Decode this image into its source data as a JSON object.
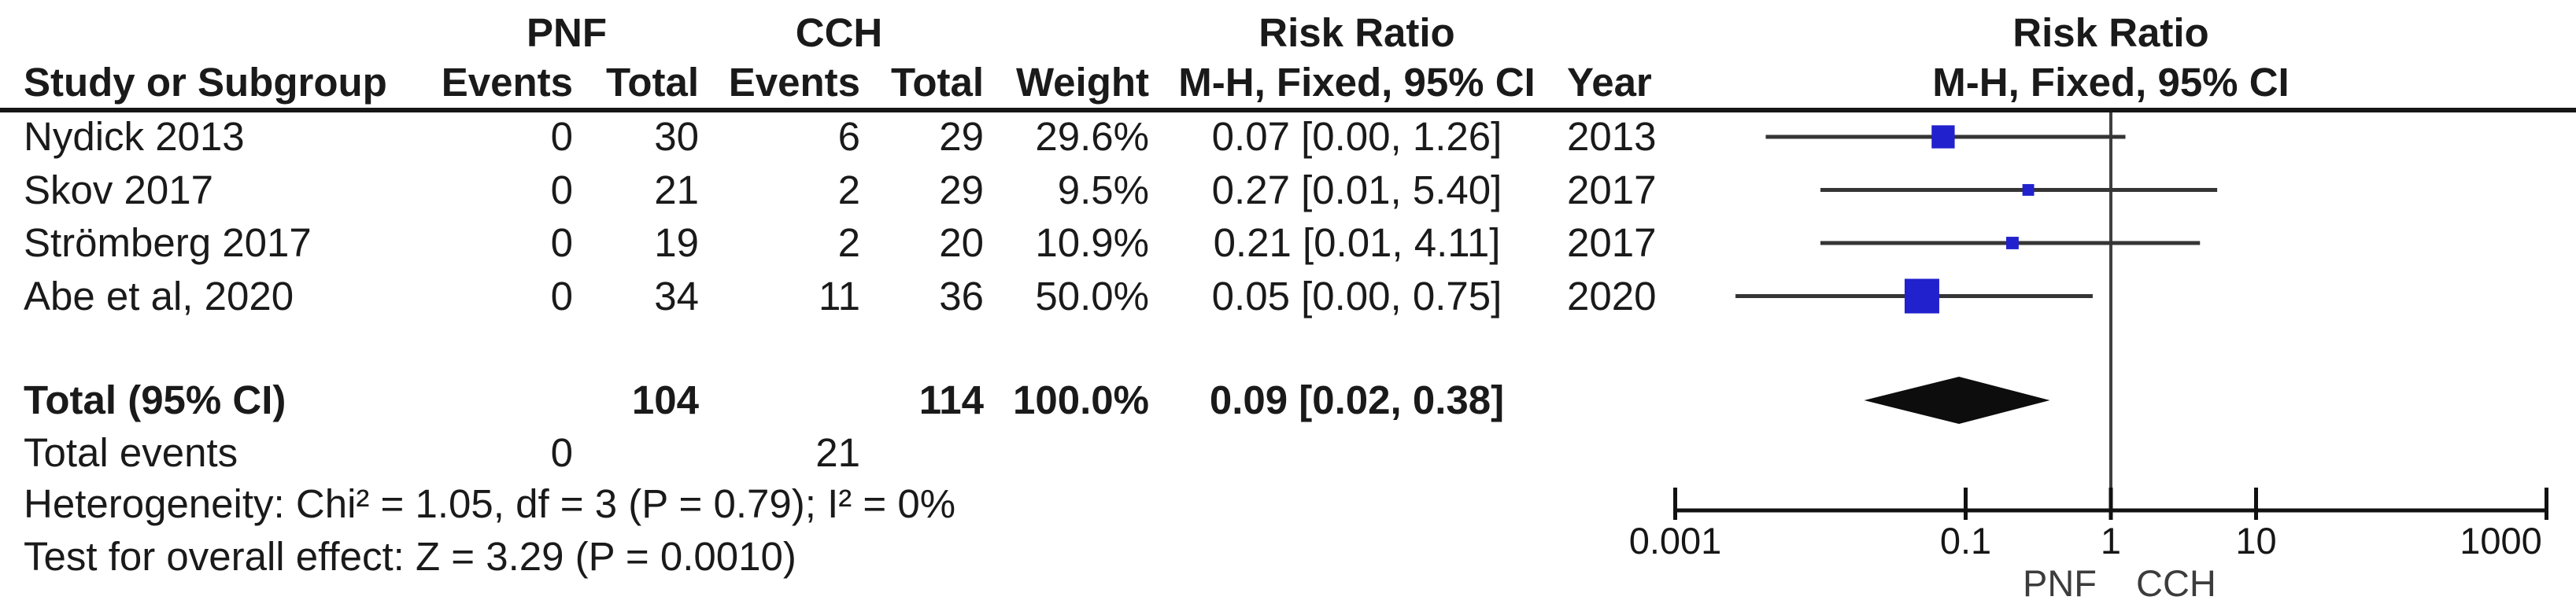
{
  "table": {
    "group_headers": {
      "pnf": "PNF",
      "cch": "CCH",
      "rr_text_col": "Risk Ratio",
      "rr_plot_col": "Risk Ratio"
    },
    "col_headers": {
      "study": "Study or Subgroup",
      "pnf_events": "Events",
      "pnf_total": "Total",
      "cch_events": "Events",
      "cch_total": "Total",
      "weight": "Weight",
      "rr_text_col": "M-H, Fixed, 95% CI",
      "year": "Year",
      "rr_plot_col": "M-H, Fixed, 95% CI"
    },
    "rows": [
      {
        "name": "Nydick 2013",
        "pnf_events": "0",
        "pnf_total": "30",
        "cch_events": "6",
        "cch_total": "29",
        "weight": "29.6%",
        "rr_ci": "0.07 [0.00, 1.26]",
        "year": "2013"
      },
      {
        "name": "Skov 2017",
        "pnf_events": "0",
        "pnf_total": "21",
        "cch_events": "2",
        "cch_total": "29",
        "weight": "9.5%",
        "rr_ci": "0.27 [0.01, 5.40]",
        "year": "2017"
      },
      {
        "name": "Strömberg 2017",
        "pnf_events": "0",
        "pnf_total": "19",
        "cch_events": "2",
        "cch_total": "20",
        "weight": "10.9%",
        "rr_ci": "0.21 [0.01, 4.11]",
        "year": "2017"
      },
      {
        "name": "Abe et al, 2020",
        "pnf_events": "0",
        "pnf_total": "34",
        "cch_events": "11",
        "cch_total": "36",
        "weight": "50.0%",
        "rr_ci": "0.05 [0.00, 0.75]",
        "year": "2020"
      }
    ],
    "total_row": {
      "label": "Total (95% CI)",
      "pnf_total": "104",
      "cch_total": "114",
      "weight": "100.0%",
      "rr_ci": "0.09 [0.02, 0.38]"
    },
    "total_events_row": {
      "label": "Total events",
      "pnf_events": "0",
      "cch_events": "21"
    },
    "heterogeneity": "Heterogeneity: Chi² = 1.05, df = 3 (P = 0.79); I² = 0%",
    "overall_effect": "Test for overall effect: Z = 3.29 (P = 0.0010)"
  },
  "chart_data": {
    "type": "forest",
    "x_scale": "log10",
    "effect_measure": "Risk Ratio (M-H, Fixed, 95% CI)",
    "axis": {
      "min": 0.001,
      "max": 1000,
      "null_value": 1,
      "tick_values": [
        0.001,
        0.1,
        1,
        10,
        1000
      ],
      "tick_labels": [
        "0.001",
        "0.1",
        "1",
        "10",
        "1000"
      ],
      "left_label": "PNF",
      "right_label": "CCH"
    },
    "studies": [
      {
        "name": "Nydick 2013",
        "rr": 0.07,
        "ci_low_drawn": 0.0042,
        "ci_high_drawn": 1.26,
        "weight_pct": 29.6
      },
      {
        "name": "Skov 2017",
        "rr": 0.27,
        "ci_low_drawn": 0.01,
        "ci_high_drawn": 5.4,
        "weight_pct": 9.5
      },
      {
        "name": "Strömberg 2017",
        "rr": 0.21,
        "ci_low_drawn": 0.01,
        "ci_high_drawn": 4.11,
        "weight_pct": 10.9
      },
      {
        "name": "Abe et al, 2020",
        "rr": 0.05,
        "ci_low_drawn": 0.0026,
        "ci_high_drawn": 0.75,
        "weight_pct": 50.0
      }
    ],
    "total": {
      "rr": 0.09,
      "ci_low": 0.02,
      "ci_high": 0.38
    },
    "colors": {
      "square": "#2121cd",
      "ci_line": "#353535",
      "diamond": "#0d0d0d",
      "axis": "#111111",
      "null_line": "#3f3f3f"
    }
  }
}
